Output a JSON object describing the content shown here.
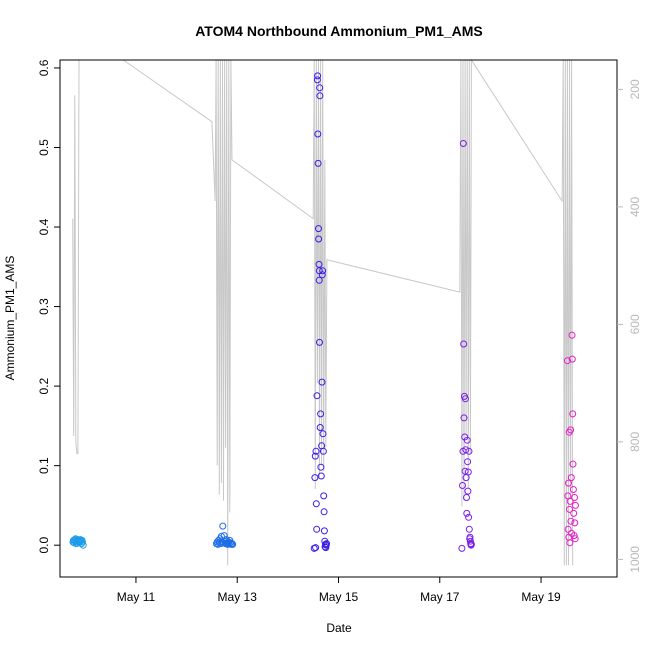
{
  "chart_data": {
    "type": "scatter",
    "title": "ATOM4 Northbound Ammonium_PM1_AMS",
    "xlabel": "Date",
    "ylabel": "Ammonium_PM1_AMS",
    "xlim": [
      "2018-05-09T12:00",
      "2018-05-20T12:00"
    ],
    "ylim": [
      -0.04,
      0.61
    ],
    "x_ticks": [
      {
        "date": "2018-05-11",
        "label": "May 11"
      },
      {
        "date": "2018-05-13",
        "label": "May 13"
      },
      {
        "date": "2018-05-15",
        "label": "May 15"
      },
      {
        "date": "2018-05-17",
        "label": "May 17"
      },
      {
        "date": "2018-05-19",
        "label": "May 19"
      }
    ],
    "y_ticks": [
      0.0,
      0.1,
      0.2,
      0.3,
      0.4,
      0.5,
      0.6
    ],
    "y_tick_labels": [
      "0.0",
      "0.1",
      "0.2",
      "0.3",
      "0.4",
      "0.5",
      "0.6"
    ],
    "secondary_axis": {
      "side": "right",
      "reversed": true,
      "range": [
        1030,
        150
      ],
      "ticks": [
        200,
        400,
        600,
        800,
        1000
      ],
      "tick_labels": [
        "200",
        "400",
        "600",
        "800",
        "1000"
      ],
      "color": "#b8b8b8"
    },
    "grid": false,
    "series": [
      {
        "role": "ammonium",
        "marker": "open-circle",
        "flights": [
          {
            "color": "#1e9be8",
            "points": [
              [
                "2018-05-09T18:10",
                0.004
              ],
              [
                "2018-05-09T18:25",
                0.006
              ],
              [
                "2018-05-09T18:40",
                0.003
              ],
              [
                "2018-05-09T18:55",
                0.007
              ],
              [
                "2018-05-09T19:10",
                0.005
              ],
              [
                "2018-05-09T19:25",
                0.008
              ],
              [
                "2018-05-09T19:40",
                0.002
              ],
              [
                "2018-05-09T19:55",
                0.006
              ],
              [
                "2018-05-09T20:10",
                0.004
              ],
              [
                "2018-05-09T20:25",
                0.007
              ],
              [
                "2018-05-09T20:40",
                0.005
              ],
              [
                "2018-05-09T20:55",
                0.003
              ],
              [
                "2018-05-09T21:10",
                0.006
              ],
              [
                "2018-05-09T21:25",
                0.004
              ],
              [
                "2018-05-09T21:40",
                0.007
              ],
              [
                "2018-05-09T21:55",
                0.005
              ],
              [
                "2018-05-09T22:10",
                0.002
              ],
              [
                "2018-05-09T22:25",
                0.006
              ],
              [
                "2018-05-09T22:40",
                0.004
              ],
              [
                "2018-05-09T23:00",
                0.0
              ]
            ]
          },
          {
            "color": "#1f6ee8",
            "points": [
              [
                "2018-05-12T14:10",
                0.002
              ],
              [
                "2018-05-12T14:30",
                0.004
              ],
              [
                "2018-05-12T14:50",
                0.001
              ],
              [
                "2018-05-12T15:10",
                0.006
              ],
              [
                "2018-05-12T15:30",
                0.003
              ],
              [
                "2018-05-12T15:50",
                0.008
              ],
              [
                "2018-05-12T16:10",
                0.002
              ],
              [
                "2018-05-12T16:30",
                0.011
              ],
              [
                "2018-05-12T16:50",
                0.004
              ],
              [
                "2018-05-12T17:10",
                0.024
              ],
              [
                "2018-05-12T17:30",
                0.003
              ],
              [
                "2018-05-12T17:50",
                0.012
              ],
              [
                "2018-05-12T18:10",
                0.005
              ],
              [
                "2018-05-12T18:30",
                0.002
              ],
              [
                "2018-05-12T18:50",
                0.007
              ],
              [
                "2018-05-12T19:10",
                0.003
              ],
              [
                "2018-05-12T19:30",
                0.001
              ],
              [
                "2018-05-12T19:50",
                0.004
              ],
              [
                "2018-05-12T20:10",
                0.002
              ],
              [
                "2018-05-12T20:30",
                0.006
              ],
              [
                "2018-05-12T20:50",
                0.003
              ],
              [
                "2018-05-12T21:10",
                0.001
              ],
              [
                "2018-05-12T21:30",
                0.002
              ],
              [
                "2018-05-12T21:50",
                0.001
              ]
            ]
          },
          {
            "color": "#3a1ee8",
            "points": [
              [
                "2018-05-14T12:30",
                -0.004
              ],
              [
                "2018-05-14T12:50",
                0.085
              ],
              [
                "2018-05-14T13:00",
                0.112
              ],
              [
                "2018-05-14T13:10",
                -0.003
              ],
              [
                "2018-05-14T13:20",
                0.118
              ],
              [
                "2018-05-14T13:30",
                0.052
              ],
              [
                "2018-05-14T13:40",
                0.02
              ],
              [
                "2018-05-14T13:50",
                0.188
              ],
              [
                "2018-05-14T14:00",
                0.585
              ],
              [
                "2018-05-14T14:05",
                0.59
              ],
              [
                "2018-05-14T14:10",
                0.517
              ],
              [
                "2018-05-14T14:20",
                0.48
              ],
              [
                "2018-05-14T14:30",
                0.398
              ],
              [
                "2018-05-14T14:35",
                0.385
              ],
              [
                "2018-05-14T14:45",
                0.353
              ],
              [
                "2018-05-14T14:50",
                0.333
              ],
              [
                "2018-05-14T14:55",
                0.345
              ],
              [
                "2018-05-14T15:00",
                0.255
              ],
              [
                "2018-05-14T15:05",
                0.575
              ],
              [
                "2018-05-14T15:10",
                0.565
              ],
              [
                "2018-05-14T15:20",
                0.148
              ],
              [
                "2018-05-14T15:30",
                0.165
              ],
              [
                "2018-05-14T15:40",
                0.098
              ],
              [
                "2018-05-14T15:50",
                0.087
              ],
              [
                "2018-05-14T16:00",
                0.125
              ],
              [
                "2018-05-14T16:10",
                0.205
              ],
              [
                "2018-05-14T16:20",
                0.34
              ],
              [
                "2018-05-14T16:30",
                0.345
              ],
              [
                "2018-05-14T16:40",
                0.14
              ],
              [
                "2018-05-14T16:50",
                0.118
              ],
              [
                "2018-05-14T17:00",
                0.062
              ],
              [
                "2018-05-14T17:10",
                0.042
              ],
              [
                "2018-05-14T17:20",
                0.018
              ],
              [
                "2018-05-14T17:30",
                0.005
              ],
              [
                "2018-05-14T17:40",
                -0.002
              ],
              [
                "2018-05-14T17:50",
                0.001
              ],
              [
                "2018-05-14T18:00",
                -0.003
              ],
              [
                "2018-05-14T18:10",
                0.0
              ],
              [
                "2018-05-14T18:20",
                0.002
              ]
            ]
          },
          {
            "color": "#7a1ee8",
            "points": [
              [
                "2018-05-17T10:30",
                -0.004
              ],
              [
                "2018-05-17T10:45",
                0.075
              ],
              [
                "2018-05-17T11:00",
                0.118
              ],
              [
                "2018-05-17T11:10",
                0.505
              ],
              [
                "2018-05-17T11:20",
                0.253
              ],
              [
                "2018-05-17T11:30",
                0.16
              ],
              [
                "2018-05-17T11:40",
                0.187
              ],
              [
                "2018-05-17T11:50",
                0.136
              ],
              [
                "2018-05-17T12:00",
                0.093
              ],
              [
                "2018-05-17T12:10",
                0.184
              ],
              [
                "2018-05-17T12:20",
                0.12
              ],
              [
                "2018-05-17T12:30",
                0.085
              ],
              [
                "2018-05-17T12:40",
                0.06
              ],
              [
                "2018-05-17T12:50",
                0.04
              ],
              [
                "2018-05-17T13:00",
                0.132
              ],
              [
                "2018-05-17T13:10",
                0.105
              ],
              [
                "2018-05-17T13:20",
                0.068
              ],
              [
                "2018-05-17T13:30",
                0.092
              ],
              [
                "2018-05-17T13:40",
                0.035
              ],
              [
                "2018-05-17T13:50",
                0.118
              ],
              [
                "2018-05-17T14:00",
                0.02
              ],
              [
                "2018-05-17T14:10",
                0.008
              ],
              [
                "2018-05-17T14:20",
                0.01
              ],
              [
                "2018-05-17T14:30",
                0.005
              ],
              [
                "2018-05-17T14:40",
                0.002
              ],
              [
                "2018-05-17T14:50",
                0.0
              ],
              [
                "2018-05-17T15:00",
                0.001
              ]
            ]
          },
          {
            "color": "#e81ec8",
            "points": [
              [
                "2018-05-19T12:30",
                0.232
              ],
              [
                "2018-05-19T12:40",
                0.062
              ],
              [
                "2018-05-19T12:50",
                0.02
              ],
              [
                "2018-05-19T13:00",
                0.078
              ],
              [
                "2018-05-19T13:10",
                0.01
              ],
              [
                "2018-05-19T13:20",
                0.142
              ],
              [
                "2018-05-19T13:30",
                0.045
              ],
              [
                "2018-05-19T13:40",
                0.003
              ],
              [
                "2018-05-19T13:50",
                0.055
              ],
              [
                "2018-05-19T14:00",
                0.145
              ],
              [
                "2018-05-19T14:10",
                0.03
              ],
              [
                "2018-05-19T14:20",
                0.085
              ],
              [
                "2018-05-19T14:30",
                0.015
              ],
              [
                "2018-05-19T14:40",
                0.264
              ],
              [
                "2018-05-19T14:50",
                0.234
              ],
              [
                "2018-05-19T15:00",
                0.165
              ],
              [
                "2018-05-19T15:10",
                0.102
              ],
              [
                "2018-05-19T15:20",
                0.07
              ],
              [
                "2018-05-19T15:30",
                0.04
              ],
              [
                "2018-05-19T15:40",
                0.012
              ],
              [
                "2018-05-19T15:50",
                0.06
              ],
              [
                "2018-05-19T16:00",
                0.028
              ],
              [
                "2018-05-19T16:10",
                0.008
              ],
              [
                "2018-05-19T16:20",
                0.05
              ]
            ]
          }
        ]
      },
      {
        "role": "pressure",
        "axis": "right",
        "line_color": "#c8c8c8",
        "points": [
          [
            "2018-05-09T18:00",
            420
          ],
          [
            "2018-05-09T18:30",
            790
          ],
          [
            "2018-05-09T19:00",
            210
          ],
          [
            "2018-05-09T19:30",
            800
          ],
          [
            "2018-05-09T20:00",
            820
          ],
          [
            "2018-05-09T20:30",
            820
          ],
          [
            "2018-05-09T21:00",
            150
          ],
          [
            "2018-05-10T18:00",
            150
          ],
          [
            "2018-05-12T12:00",
            255
          ],
          [
            "2018-05-12T13:30",
            390
          ],
          [
            "2018-05-12T14:00",
            150
          ],
          [
            "2018-05-12T14:30",
            840
          ],
          [
            "2018-05-12T15:00",
            150
          ],
          [
            "2018-05-12T15:30",
            890
          ],
          [
            "2018-05-12T16:00",
            150
          ],
          [
            "2018-05-12T16:30",
            870
          ],
          [
            "2018-05-12T17:00",
            150
          ],
          [
            "2018-05-12T17:30",
            900
          ],
          [
            "2018-05-12T18:00",
            150
          ],
          [
            "2018-05-12T18:30",
            810
          ],
          [
            "2018-05-12T19:00",
            150
          ],
          [
            "2018-05-12T19:30",
            1010
          ],
          [
            "2018-05-12T20:00",
            150
          ],
          [
            "2018-05-12T20:30",
            920
          ],
          [
            "2018-05-12T21:00",
            150
          ],
          [
            "2018-05-12T21:30",
            320
          ],
          [
            "2018-05-14T12:00",
            420
          ],
          [
            "2018-05-14T12:30",
            150
          ],
          [
            "2018-05-14T13:00",
            880
          ],
          [
            "2018-05-14T13:30",
            150
          ],
          [
            "2018-05-14T14:00",
            700
          ],
          [
            "2018-05-14T14:30",
            150
          ],
          [
            "2018-05-14T15:00",
            860
          ],
          [
            "2018-05-14T15:30",
            150
          ],
          [
            "2018-05-14T16:00",
            840
          ],
          [
            "2018-05-14T16:30",
            150
          ],
          [
            "2018-05-14T17:00",
            850
          ],
          [
            "2018-05-14T17:30",
            320
          ],
          [
            "2018-05-14T18:00",
            810
          ],
          [
            "2018-05-14T18:30",
            490
          ],
          [
            "2018-05-17T09:30",
            545
          ],
          [
            "2018-05-17T10:00",
            150
          ],
          [
            "2018-05-17T10:30",
            910
          ],
          [
            "2018-05-17T11:00",
            150
          ],
          [
            "2018-05-17T11:30",
            900
          ],
          [
            "2018-05-17T12:00",
            150
          ],
          [
            "2018-05-17T12:30",
            790
          ],
          [
            "2018-05-17T13:00",
            150
          ],
          [
            "2018-05-17T13:30",
            880
          ],
          [
            "2018-05-17T14:00",
            150
          ],
          [
            "2018-05-17T14:30",
            820
          ],
          [
            "2018-05-17T15:00",
            150
          ],
          [
            "2018-05-19T10:00",
            390
          ],
          [
            "2018-05-19T10:30",
            150
          ],
          [
            "2018-05-19T11:00",
            1010
          ],
          [
            "2018-05-19T11:30",
            150
          ],
          [
            "2018-05-19T12:00",
            1010
          ],
          [
            "2018-05-19T12:30",
            150
          ],
          [
            "2018-05-19T13:00",
            1010
          ],
          [
            "2018-05-19T13:30",
            150
          ],
          [
            "2018-05-19T14:00",
            890
          ],
          [
            "2018-05-19T14:30",
            150
          ],
          [
            "2018-05-19T15:00",
            1010
          ]
        ]
      }
    ]
  }
}
